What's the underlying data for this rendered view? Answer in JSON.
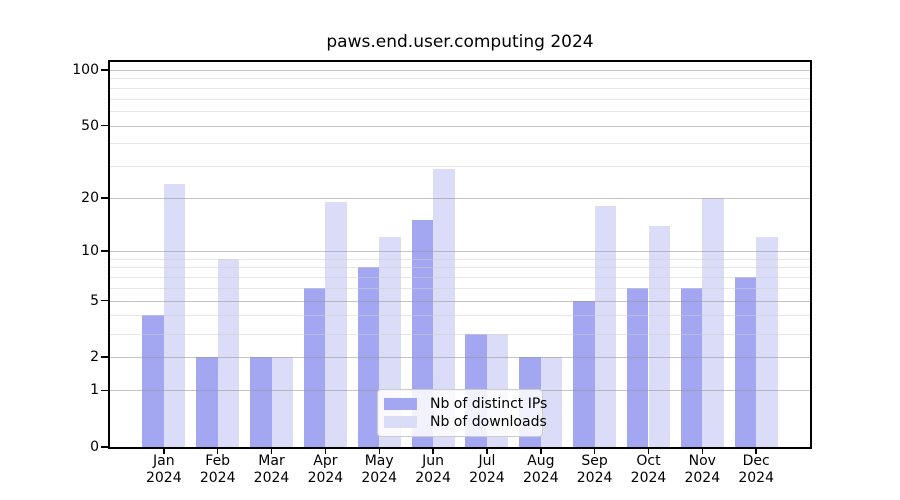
{
  "title": "paws.end.user.computing 2024",
  "chart_data": {
    "type": "bar",
    "title": "paws.end.user.computing 2024",
    "categories": [
      "Jan 2024",
      "Feb 2024",
      "Mar 2024",
      "Apr 2024",
      "May 2024",
      "Jun 2024",
      "Jul 2024",
      "Aug 2024",
      "Sep 2024",
      "Oct 2024",
      "Nov 2024",
      "Dec 2024"
    ],
    "series": [
      {
        "name": "Nb of distinct IPs",
        "color": "#a3a6f1",
        "values": [
          4,
          2,
          2,
          6,
          8,
          15,
          3,
          2,
          5,
          6,
          6,
          7
        ]
      },
      {
        "name": "Nb of downloads",
        "color": "#dadcf8",
        "values": [
          24,
          9,
          2,
          19,
          12,
          29,
          3,
          2,
          18,
          14,
          20,
          12
        ]
      }
    ],
    "xlabel": "",
    "ylabel": "",
    "yscale": "log1p",
    "ylim": [
      0,
      110
    ],
    "y_major_ticks": [
      0,
      1,
      2,
      5,
      10,
      20,
      50,
      100
    ],
    "y_minor_ticks": [
      3,
      4,
      6,
      7,
      8,
      9,
      30,
      40,
      60,
      70,
      80,
      90
    ],
    "grid": "horizontal",
    "legend_position": "lower center"
  },
  "colors": {
    "background": "#ffffff",
    "spine": "#000000",
    "major_grid": "#c5c5c5",
    "minor_grid": "#e9e9e9",
    "text": "#000000"
  }
}
